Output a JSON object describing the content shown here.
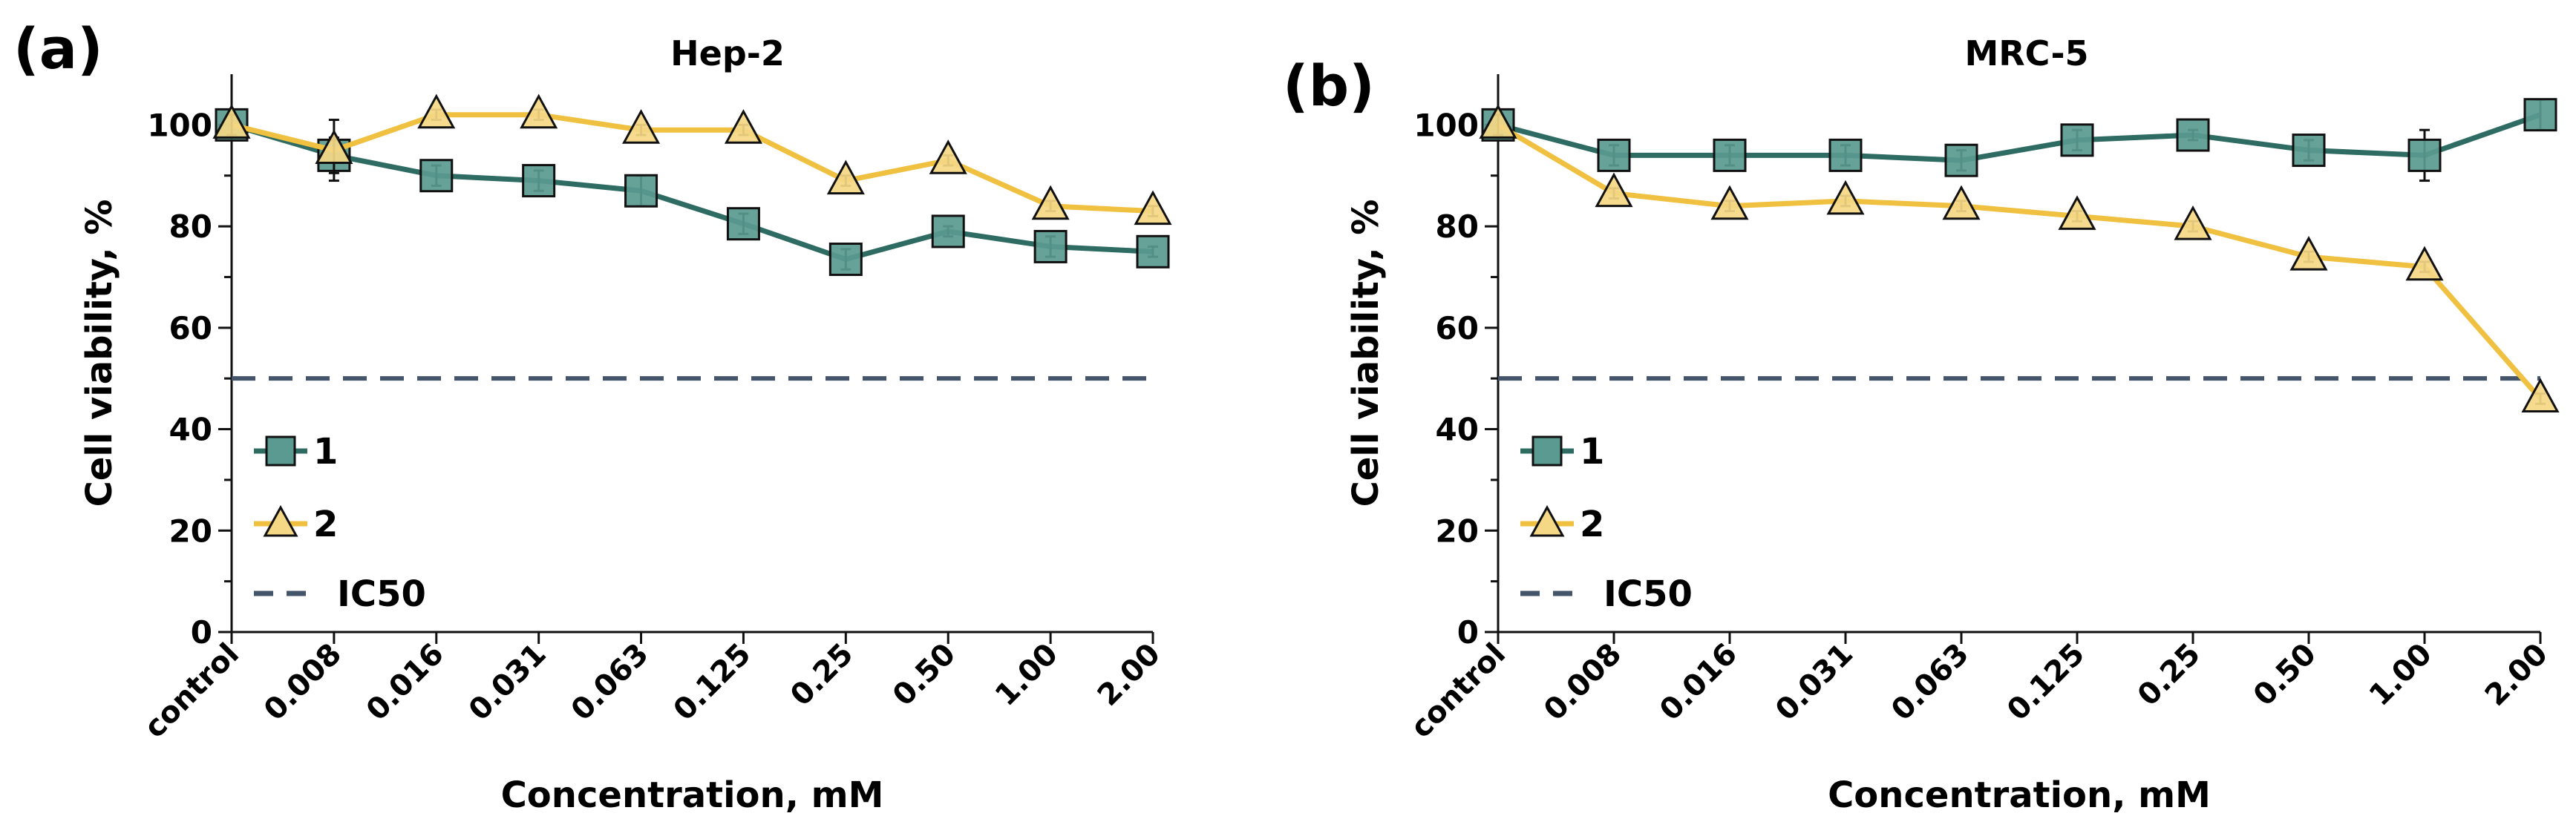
{
  "chart_data": [
    {
      "panel": "(a)",
      "type": "line",
      "title": "Hep-2",
      "xlabel": "Concentration, mM",
      "ylabel": "Cell viability, %",
      "categories": [
        "control",
        "0.008",
        "0.016",
        "0.031",
        "0.063",
        "0.125",
        "0.25",
        "0.50",
        "1.00",
        "2.00"
      ],
      "ylim": [
        0,
        110
      ],
      "yticks": [
        "0",
        "20",
        "40",
        "60",
        "80",
        "100"
      ],
      "series": [
        {
          "name": "1",
          "marker": "square",
          "color": "#2e6b62",
          "markerFill": "#5a9a90",
          "values": [
            100,
            94,
            90,
            89,
            87,
            80.5,
            73.5,
            79,
            76,
            75
          ],
          "errors": [
            2,
            3.5,
            2,
            2,
            3,
            2,
            2,
            1,
            2,
            1
          ]
        },
        {
          "name": "2",
          "marker": "triangle",
          "color": "#f0c040",
          "markerFill": "#f5d886",
          "values": [
            100,
            95,
            102,
            102,
            99,
            99,
            89,
            93,
            84,
            83
          ],
          "errors": [
            2,
            6,
            1,
            1,
            1,
            1,
            1,
            1,
            1,
            1
          ]
        }
      ],
      "reference": {
        "name": "IC50",
        "value": 50,
        "color": "#44546a"
      },
      "legend": [
        "1",
        "2",
        "IC50"
      ]
    },
    {
      "panel": "(b)",
      "type": "line",
      "title": "MRC-5",
      "xlabel": "Concentration, mM",
      "ylabel": "Cell viability, %",
      "categories": [
        "control",
        "0.008",
        "0.016",
        "0.031",
        "0.063",
        "0.125",
        "0.25",
        "0.50",
        "1.00",
        "2.00"
      ],
      "ylim": [
        0,
        110
      ],
      "yticks": [
        "0",
        "20",
        "40",
        "60",
        "80",
        "100"
      ],
      "series": [
        {
          "name": "1",
          "marker": "square",
          "color": "#2e6b62",
          "markerFill": "#5a9a90",
          "values": [
            100,
            94,
            94,
            94,
            93,
            97,
            98,
            95,
            94,
            102
          ],
          "errors": [
            2,
            2,
            2,
            2,
            2,
            2,
            1,
            2,
            5,
            3
          ]
        },
        {
          "name": "2",
          "marker": "triangle",
          "color": "#f0c040",
          "markerFill": "#f5d886",
          "values": [
            100,
            86.5,
            84,
            85,
            84,
            82,
            80,
            74,
            72,
            46
          ],
          "errors": [
            2,
            1,
            1,
            1,
            1,
            1,
            1,
            1,
            1,
            1
          ]
        }
      ],
      "reference": {
        "name": "IC50",
        "value": 50,
        "color": "#44546a"
      },
      "legend": [
        "1",
        "2",
        "IC50"
      ]
    }
  ]
}
